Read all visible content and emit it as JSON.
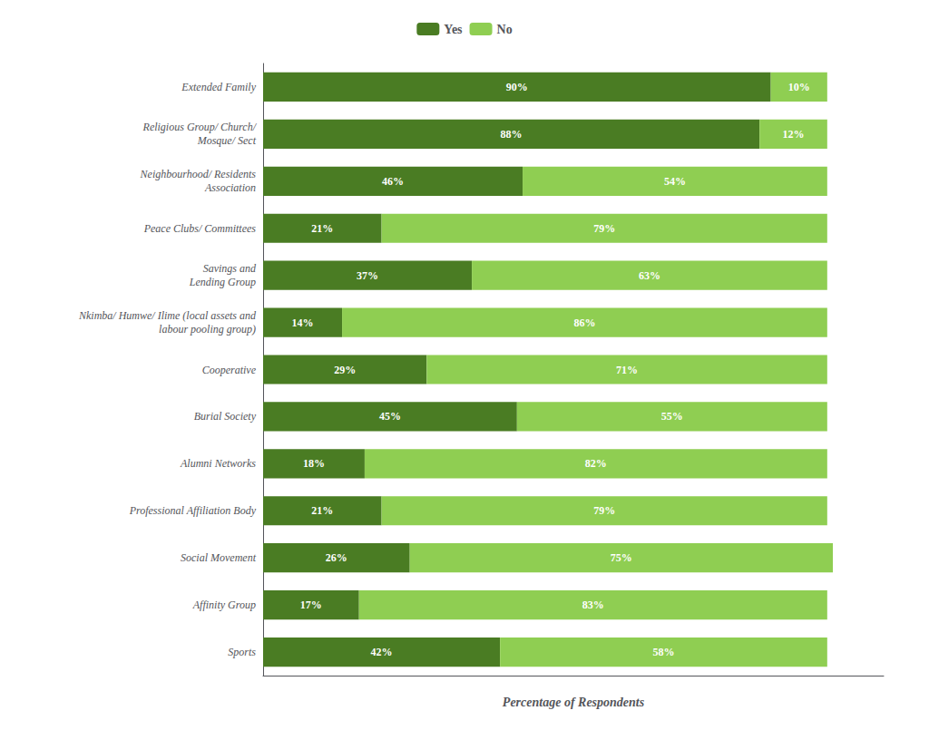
{
  "chart_data": {
    "type": "bar",
    "orientation": "horizontal",
    "stacked": true,
    "categories": [
      "Extended Family",
      "Religious Group/ Church/\nMosque/ Sect",
      "Neighbourhood/ Residents\nAssociation",
      "Peace Clubs/ Committees",
      "Savings and\nLending Group",
      "Nkimba/ Humwe/ Ilime (local assets and\nlabour pooling group)",
      "Cooperative",
      "Burial Society",
      "Alumni Networks",
      "Professional Affiliation Body",
      "Social Movement",
      "Affinity Group",
      "Sports"
    ],
    "series": [
      {
        "name": "Yes",
        "color": "#4a7c23",
        "values": [
          90,
          88,
          46,
          21,
          37,
          14,
          29,
          45,
          18,
          21,
          26,
          17,
          42
        ],
        "value_labels": [
          "90%",
          "88%",
          "46%",
          "21%",
          "37%",
          "14%",
          "29%",
          "45%",
          "18%",
          "21%",
          "26%",
          "17%",
          "42%"
        ]
      },
      {
        "name": "No",
        "color": "#8fce52",
        "values": [
          10,
          12,
          54,
          79,
          63,
          86,
          71,
          55,
          82,
          79,
          75,
          83,
          58
        ],
        "value_labels": [
          "10%",
          "12%",
          "54%",
          "79%",
          "63%",
          "86%",
          "71%",
          "55%",
          "82%",
          "79%",
          "75%",
          "83%",
          "58%"
        ]
      }
    ],
    "xlabel": "Percentage of Respondents",
    "xlim": [
      0,
      110
    ],
    "tick_labels": "y",
    "data_labels": true,
    "legend": "top",
    "grid": false
  }
}
